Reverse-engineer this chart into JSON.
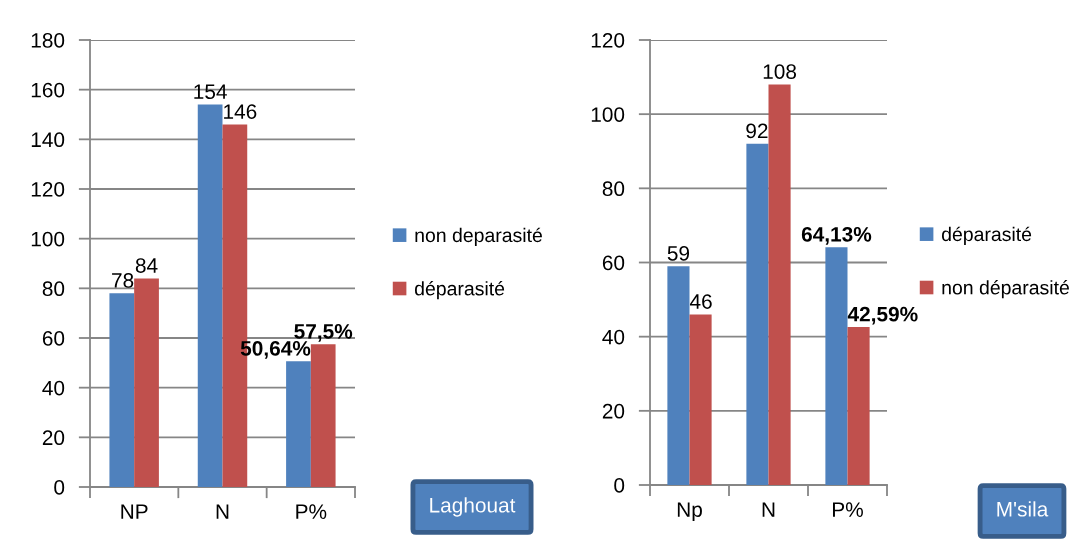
{
  "chart_data": [
    {
      "type": "bar",
      "categories": [
        "NP",
        "N",
        "P%"
      ],
      "series": [
        {
          "name": "non deparasité",
          "color": "#4f81bd",
          "values": [
            78,
            154,
            50.64
          ],
          "value_labels": [
            "78",
            "154",
            "50,64%"
          ]
        },
        {
          "name": "déparasité",
          "color": "#c0504d",
          "values": [
            84,
            146,
            57.5
          ],
          "value_labels": [
            "84",
            "146",
            "57,5%"
          ]
        }
      ],
      "ylim": [
        0,
        180
      ],
      "yticks": [
        0,
        20,
        40,
        60,
        80,
        100,
        120,
        140,
        160,
        180
      ],
      "grid": "y",
      "legend": "right",
      "annotations": [
        "Laghouat"
      ]
    },
    {
      "type": "bar",
      "categories": [
        "Np",
        "N",
        "P%"
      ],
      "series": [
        {
          "name": "déparasité",
          "color": "#4f81bd",
          "values": [
            59,
            92,
            64.13
          ],
          "value_labels": [
            "59",
            "92",
            "64,13%"
          ]
        },
        {
          "name": "non déparasité",
          "color": "#c0504d",
          "values": [
            46,
            108,
            42.59
          ],
          "value_labels": [
            "46",
            "108",
            "42,59%"
          ]
        }
      ],
      "ylim": [
        0,
        120
      ],
      "yticks": [
        0,
        20,
        40,
        60,
        80,
        100,
        120
      ],
      "grid": "y",
      "legend": "right",
      "annotations": [
        "M'sila"
      ]
    }
  ]
}
